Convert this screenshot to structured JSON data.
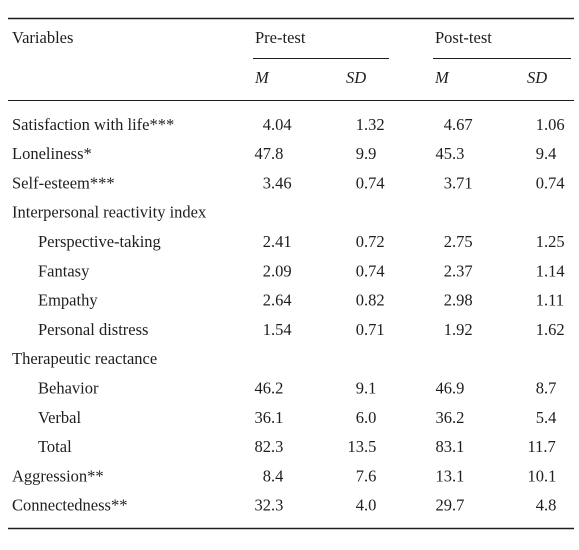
{
  "table": {
    "header": {
      "variables": "Variables",
      "groups": [
        "Pre-test",
        "Post-test"
      ],
      "subheaders": [
        "M",
        "SD",
        "M",
        "SD"
      ]
    },
    "rows": [
      {
        "label": "Satisfaction with life***",
        "values": [
          "4.04",
          "1.32",
          "4.67",
          "1.06"
        ]
      },
      {
        "label": "Loneliness*",
        "values": [
          "47.8",
          "9.9",
          "45.3",
          "9.4"
        ]
      },
      {
        "label": "Self-esteem***",
        "values": [
          "3.46",
          "0.74",
          "3.71",
          "0.74"
        ]
      },
      {
        "label": "Interpersonal reactivity index",
        "items": [
          {
            "label": "Perspective-taking",
            "values": [
              "2.41",
              "0.72",
              "2.75",
              "1.25"
            ]
          },
          {
            "label": "Fantasy",
            "values": [
              "2.09",
              "0.74",
              "2.37",
              "1.14"
            ]
          },
          {
            "label": "Empathy",
            "values": [
              "2.64",
              "0.82",
              "2.98",
              "1.11"
            ]
          },
          {
            "label": "Personal distress",
            "values": [
              "1.54",
              "0.71",
              "1.92",
              "1.62"
            ]
          }
        ]
      },
      {
        "label": "Therapeutic reactance",
        "items": [
          {
            "label": "Behavior",
            "values": [
              "46.2",
              "9.1",
              "46.9",
              "8.7"
            ]
          },
          {
            "label": "Verbal",
            "values": [
              "36.1",
              "6.0",
              "36.2",
              "5.4"
            ]
          },
          {
            "label": "Total",
            "values": [
              "82.3",
              "13.5",
              "83.1",
              "11.7"
            ]
          }
        ]
      },
      {
        "label": "Aggression**",
        "values": [
          "8.4",
          "7.6",
          "13.1",
          "10.1"
        ]
      },
      {
        "label": "Connectedness**",
        "values": [
          "32.3",
          "4.0",
          "29.7",
          "4.8"
        ]
      }
    ]
  }
}
